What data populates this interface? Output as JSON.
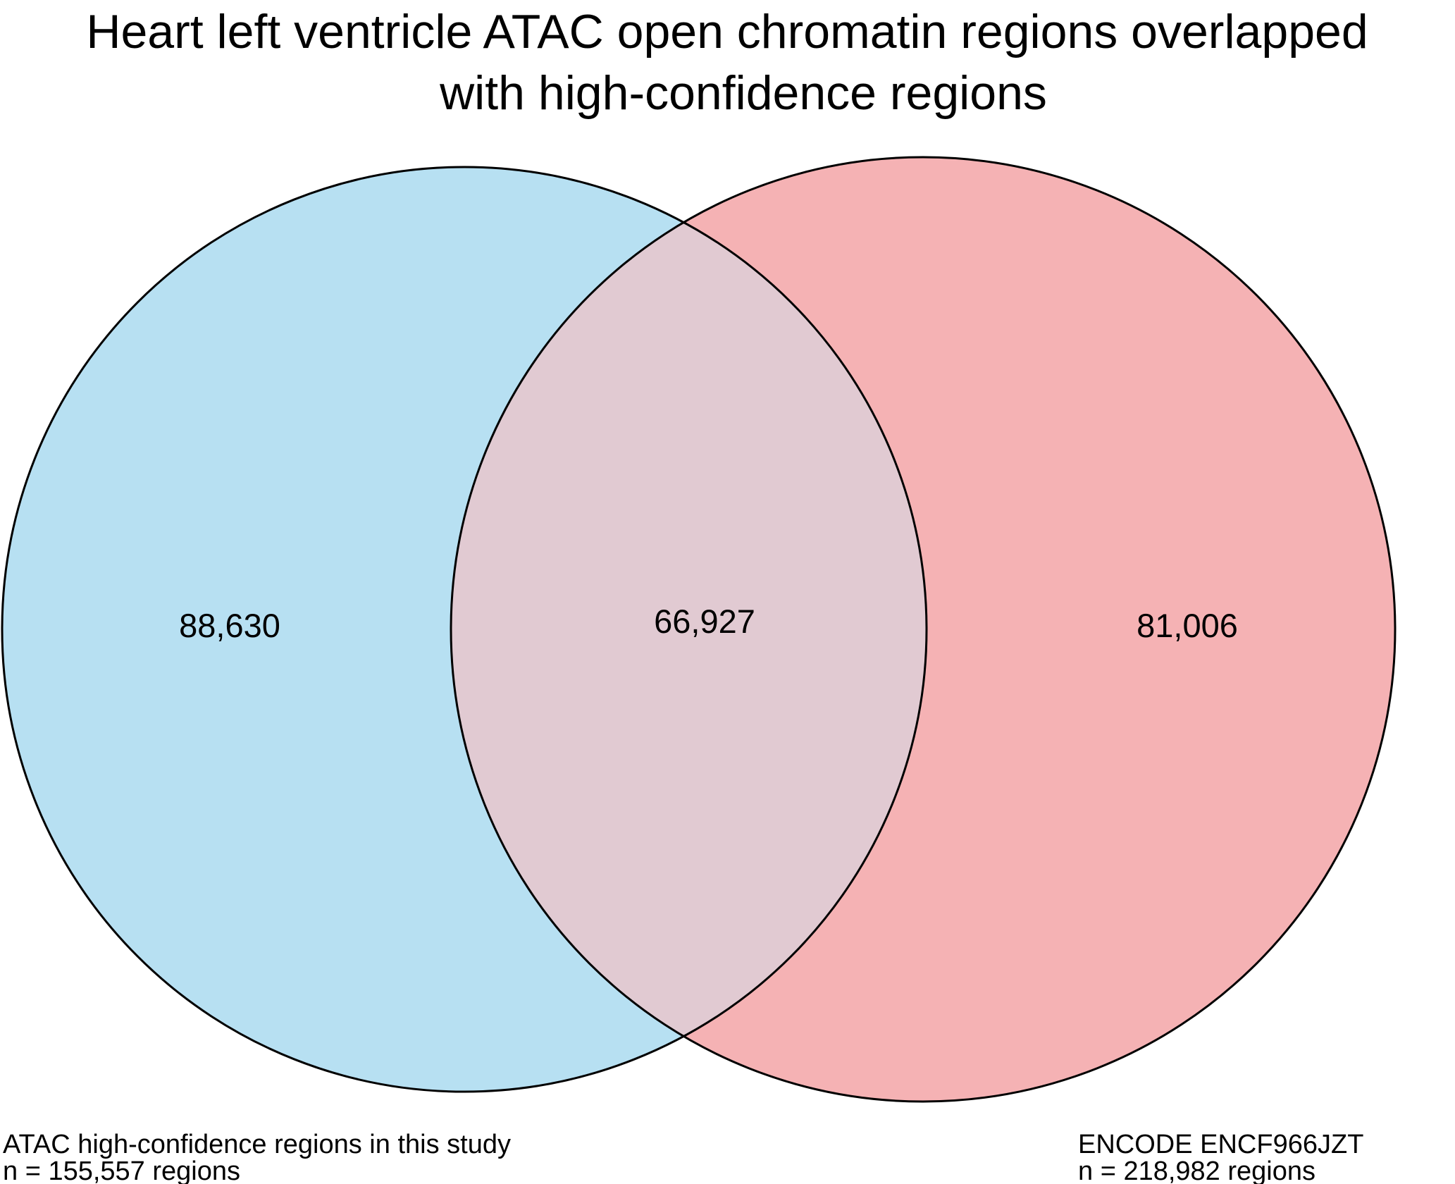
{
  "title_lines": [
    "Heart left ventricle ATAC open chromatin regions overlapped",
    "with high-confidence regions"
  ],
  "chart_data": {
    "type": "venn",
    "sets": [
      {
        "label": "ATAC high-confidence regions in this study",
        "total_label": "n = 155,557 regions",
        "total": 155557,
        "only_count": 88630,
        "only_label": "88,630",
        "color": "#b7e0f2"
      },
      {
        "label": "ENCODE ENCF966JZT",
        "total_label": "n = 218,982 regions",
        "total": 218982,
        "only_count": 81006,
        "only_label": "81,006",
        "color": "#f5b2b4"
      }
    ],
    "intersection": {
      "count": 66927,
      "label": "66,927",
      "color": "#e1cad2"
    }
  }
}
